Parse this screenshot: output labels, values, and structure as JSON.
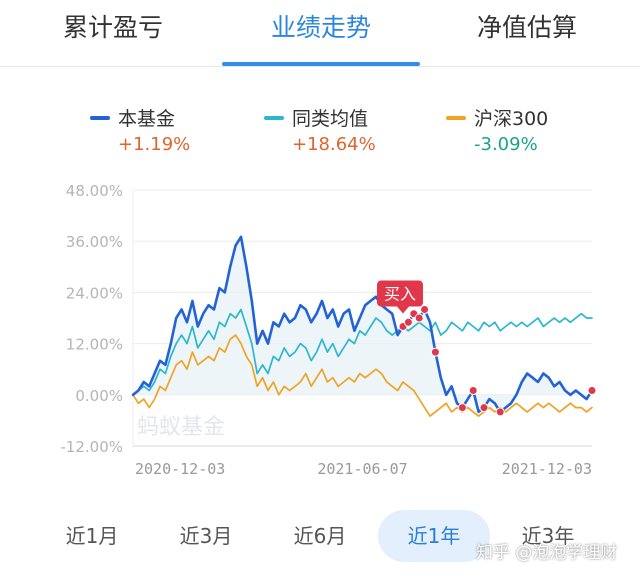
{
  "tabs": [
    {
      "label": "累计盈亏",
      "active": false
    },
    {
      "label": "业绩走势",
      "active": true
    },
    {
      "label": "净值估算",
      "active": false
    }
  ],
  "legend": [
    {
      "label": "本基金",
      "value": "+1.19%",
      "color": "#2463d6",
      "value_color": "#e0642c"
    },
    {
      "label": "同类均值",
      "value": "+18.64%",
      "color": "#2bb7cf",
      "value_color": "#e0642c"
    },
    {
      "label": "沪深300",
      "value": "-3.09%",
      "color": "#f0a325",
      "value_color": "#1aa38a"
    }
  ],
  "buy_marker": {
    "label": "买入"
  },
  "watermark_chart": "蚂蚁基金",
  "watermark_site": "知乎 @泡泡学理财",
  "range_tabs": [
    {
      "label": "近1月",
      "active": false
    },
    {
      "label": "近3月",
      "active": false
    },
    {
      "label": "近6月",
      "active": false
    },
    {
      "label": "近1年",
      "active": true
    },
    {
      "label": "近3年",
      "active": false
    }
  ],
  "chart_data": {
    "type": "line",
    "ylim": [
      -12,
      48
    ],
    "y_ticks": [
      "48.00%",
      "36.00%",
      "24.00%",
      "12.00%",
      "0.00%",
      "-12.00%"
    ],
    "y_tick_values": [
      48,
      36,
      24,
      12,
      0,
      -12
    ],
    "x_ticks": [
      "2020-12-03",
      "2021-06-07",
      "2021-12-03"
    ],
    "x_tick_positions": [
      0,
      0.5,
      1
    ],
    "series": [
      {
        "name": "本基金",
        "color": "#2463d6",
        "values": [
          0,
          1,
          3,
          2,
          5,
          8,
          7,
          12,
          18,
          20,
          17,
          22,
          16,
          19,
          21,
          20,
          25,
          24,
          30,
          35,
          37,
          30,
          22,
          12,
          15,
          12,
          17,
          16,
          19,
          17,
          18,
          21,
          20,
          17,
          19,
          22,
          18,
          20,
          16,
          19,
          20,
          15,
          18,
          21,
          22,
          23,
          21,
          20,
          19,
          14,
          16,
          17,
          19,
          18,
          20,
          17,
          10,
          4,
          0,
          2,
          -2,
          -3,
          -1,
          1,
          -4,
          -3,
          -1,
          -2,
          -4,
          -3,
          -2,
          0,
          3,
          5,
          4,
          3,
          5,
          4,
          2,
          3,
          1,
          0,
          1,
          0,
          -1,
          1
        ]
      },
      {
        "name": "同类均值",
        "color": "#2bb7cf",
        "values": [
          0,
          1,
          2,
          1,
          3,
          6,
          5,
          9,
          12,
          14,
          12,
          16,
          11,
          13,
          15,
          13,
          17,
          16,
          19,
          18,
          20,
          16,
          12,
          5,
          7,
          5,
          9,
          8,
          11,
          9,
          10,
          12,
          11,
          8,
          10,
          13,
          10,
          12,
          9,
          11,
          13,
          12,
          15,
          14,
          16,
          18,
          17,
          15,
          14,
          15,
          16,
          15,
          16,
          17,
          16,
          15,
          17,
          14,
          15,
          17,
          16,
          15,
          17,
          16,
          15,
          17,
          16,
          17,
          15,
          16,
          17,
          16,
          17,
          16,
          17,
          18,
          16,
          17,
          18,
          17,
          18,
          17,
          18,
          19,
          18,
          18
        ]
      },
      {
        "name": "沪深300",
        "color": "#f0a325",
        "values": [
          0,
          -2,
          -1,
          -3,
          -1,
          2,
          1,
          4,
          7,
          8,
          6,
          10,
          7,
          8,
          9,
          8,
          11,
          10,
          13,
          14,
          12,
          9,
          7,
          2,
          4,
          1,
          3,
          0,
          2,
          1,
          2,
          3,
          5,
          2,
          4,
          6,
          3,
          4,
          2,
          3,
          4,
          3,
          5,
          4,
          5,
          6,
          5,
          3,
          2,
          1,
          3,
          2,
          1,
          -1,
          -3,
          -5,
          -4,
          -3,
          -2,
          -4,
          -3,
          -4,
          -3,
          -4,
          -5,
          -4,
          -3,
          -4,
          -3,
          -4,
          -3,
          -2,
          -3,
          -4,
          -3,
          -2,
          -3,
          -2,
          -3,
          -4,
          -3,
          -2,
          -3,
          -3,
          -4,
          -3
        ]
      }
    ],
    "buy_points": {
      "series": "本基金",
      "indices": [
        50,
        51,
        52,
        53,
        54,
        56,
        61,
        63,
        65,
        68,
        85
      ]
    }
  }
}
